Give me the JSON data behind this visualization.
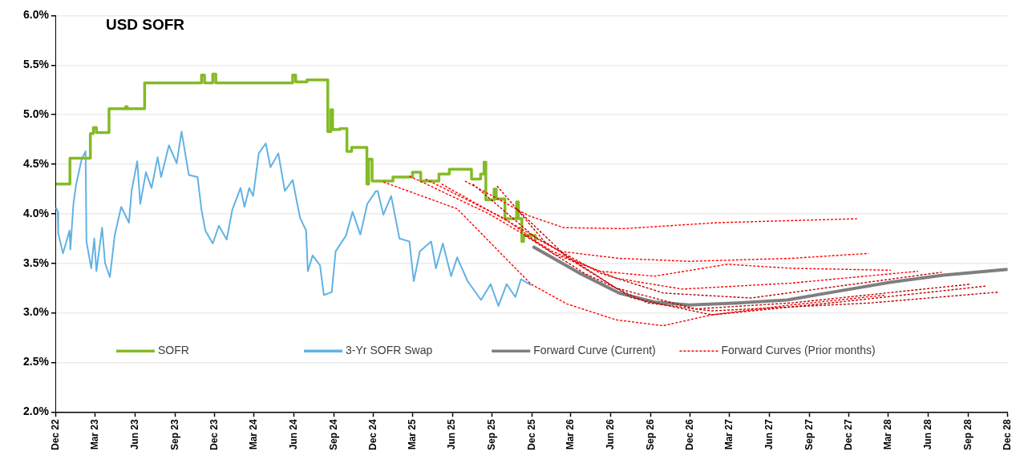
{
  "chart_data": {
    "type": "line",
    "title": "USD SOFR",
    "legend": "bottom",
    "grid": "y",
    "marker": "none",
    "ylim": [
      2,
      6
    ],
    "yticks": [
      {
        "value": 2,
        "label": "2.0%"
      },
      {
        "value": 2.5,
        "label": "2.5%"
      },
      {
        "value": 3,
        "label": "3.0%"
      },
      {
        "value": 3.5,
        "label": "3.5%"
      },
      {
        "value": 4,
        "label": "4.0%"
      },
      {
        "value": 4.5,
        "label": "4.5%"
      },
      {
        "value": 5,
        "label": "5.0%"
      },
      {
        "value": 5.5,
        "label": "5.5%"
      },
      {
        "value": 6,
        "label": "6.0%"
      }
    ],
    "xlim": [
      "2022-12",
      "2028-12"
    ],
    "xticks": [
      {
        "value": "2022-12",
        "label": "Dec 22"
      },
      {
        "value": "2023-03",
        "label": "Mar 23"
      },
      {
        "value": "2023-06",
        "label": "Jun 23"
      },
      {
        "value": "2023-09",
        "label": "Sep 23"
      },
      {
        "value": "2023-12",
        "label": "Dec 23"
      },
      {
        "value": "2024-03",
        "label": "Mar 24"
      },
      {
        "value": "2024-06",
        "label": "Jun 24"
      },
      {
        "value": "2024-09",
        "label": "Sep 24"
      },
      {
        "value": "2024-12",
        "label": "Dec 24"
      },
      {
        "value": "2025-03",
        "label": "Mar 25"
      },
      {
        "value": "2025-06",
        "label": "Jun 25"
      },
      {
        "value": "2025-09",
        "label": "Sep 25"
      },
      {
        "value": "2025-12",
        "label": "Dec 25"
      },
      {
        "value": "2026-03",
        "label": "Mar 26"
      },
      {
        "value": "2026-06",
        "label": "Jun 26"
      },
      {
        "value": "2026-09",
        "label": "Sep 26"
      },
      {
        "value": "2026-12",
        "label": "Dec 26"
      },
      {
        "value": "2027-03",
        "label": "Mar 27"
      },
      {
        "value": "2027-06",
        "label": "Jun 27"
      },
      {
        "value": "2027-09",
        "label": "Sep 27"
      },
      {
        "value": "2027-12",
        "label": "Dec 27"
      },
      {
        "value": "2028-03",
        "label": "Mar 28"
      },
      {
        "value": "2028-06",
        "label": "Jun 28"
      },
      {
        "value": "2028-09",
        "label": "Sep 28"
      },
      {
        "value": "2028-12",
        "label": "Dec 28"
      }
    ],
    "series": [
      {
        "name": "SOFR",
        "type": "step",
        "color": "#84bb26",
        "line_style": "solid",
        "x": [
          "2022-12-01",
          "2023-01-02",
          "2023-02-18",
          "2023-02-25",
          "2023-03-04",
          "2023-04-02",
          "2023-05-10",
          "2023-05-14",
          "2023-06-23",
          "2023-11-01",
          "2023-11-08",
          "2023-11-27",
          "2023-12-04",
          "2024-05-29",
          "2024-06-05",
          "2024-07-01",
          "2024-08-18",
          "2024-08-25",
          "2024-08-29",
          "2024-09-15",
          "2024-10-01",
          "2024-10-12",
          "2024-11-16",
          "2024-11-20",
          "2024-11-28",
          "2025-01-15",
          "2025-03-01",
          "2025-03-20",
          "2025-05-01",
          "2025-05-25",
          "2025-07-15",
          "2025-08-05",
          "2025-08-13",
          "2025-08-17",
          "2025-09-05",
          "2025-09-10",
          "2025-09-30",
          "2025-10-27",
          "2025-10-31",
          "2025-11-08",
          "2025-11-12",
          "2025-12-09"
        ],
        "values": [
          4.3,
          4.56,
          4.81,
          4.87,
          4.82,
          5.06,
          5.08,
          5.06,
          5.32,
          5.4,
          5.32,
          5.41,
          5.32,
          5.4,
          5.33,
          5.35,
          4.83,
          5.05,
          4.85,
          4.86,
          4.63,
          4.67,
          4.3,
          4.55,
          4.33,
          4.37,
          4.42,
          4.33,
          4.4,
          4.45,
          4.35,
          4.4,
          4.52,
          4.14,
          4.25,
          4.15,
          3.95,
          4.12,
          3.95,
          3.72,
          3.78,
          3.72
        ]
      },
      {
        "name": "3-Yr SOFR Swap",
        "type": "line",
        "color": "#62b2e4",
        "line_style": "solid",
        "x": [
          "2022-12-01",
          "2022-12-05",
          "2022-12-06",
          "2022-12-17",
          "2023-01-01",
          "2023-01-03",
          "2023-01-10",
          "2023-01-16",
          "2023-01-29",
          "2023-02-07",
          "2023-02-09",
          "2023-02-20",
          "2023-02-27",
          "2023-03-04",
          "2023-03-17",
          "2023-03-24",
          "2023-04-04",
          "2023-04-15",
          "2023-04-30",
          "2023-05-18",
          "2023-05-24",
          "2023-06-06",
          "2023-06-13",
          "2023-06-26",
          "2023-07-09",
          "2023-07-23",
          "2023-07-31",
          "2023-08-18",
          "2023-09-05",
          "2023-09-16",
          "2023-10-03",
          "2023-10-23",
          "2023-11-01",
          "2023-11-10",
          "2023-11-27",
          "2023-12-11",
          "2023-12-29",
          "2024-01-11",
          "2024-01-30",
          "2024-02-08",
          "2024-02-19",
          "2024-02-28",
          "2024-03-12",
          "2024-03-28",
          "2024-04-08",
          "2024-04-26",
          "2024-05-11",
          "2024-05-29",
          "2024-06-15",
          "2024-06-29",
          "2024-07-03",
          "2024-07-14",
          "2024-07-31",
          "2024-08-09",
          "2024-08-27",
          "2024-09-05",
          "2024-09-29",
          "2024-10-14",
          "2024-11-01",
          "2024-11-17",
          "2024-12-07",
          "2024-12-11",
          "2024-12-24",
          "2025-01-11",
          "2025-01-30",
          "2025-02-22",
          "2025-03-04",
          "2025-03-18",
          "2025-04-13",
          "2025-04-24",
          "2025-05-10",
          "2025-05-29",
          "2025-06-12",
          "2025-07-06",
          "2025-08-06",
          "2025-08-28",
          "2025-09-15",
          "2025-10-04",
          "2025-10-24",
          "2025-11-06",
          "2025-11-29"
        ],
        "values": [
          4.06,
          4.02,
          3.8,
          3.6,
          3.83,
          3.64,
          4.1,
          4.29,
          4.55,
          4.63,
          3.72,
          3.45,
          3.75,
          3.42,
          3.86,
          3.5,
          3.36,
          3.78,
          4.07,
          3.91,
          4.23,
          4.53,
          4.1,
          4.42,
          4.26,
          4.57,
          4.37,
          4.69,
          4.51,
          4.83,
          4.39,
          4.37,
          4.04,
          3.83,
          3.7,
          3.88,
          3.74,
          4.04,
          4.26,
          4.07,
          4.26,
          4.18,
          4.61,
          4.71,
          4.47,
          4.61,
          4.23,
          4.34,
          3.96,
          3.83,
          3.42,
          3.58,
          3.48,
          3.18,
          3.21,
          3.62,
          3.78,
          4.02,
          3.79,
          4.1,
          4.23,
          4.23,
          3.99,
          4.18,
          3.75,
          3.72,
          3.32,
          3.62,
          3.72,
          3.45,
          3.7,
          3.37,
          3.56,
          3.32,
          3.13,
          3.29,
          3.07,
          3.29,
          3.16,
          3.34,
          3.28
        ]
      },
      {
        "name": "Forward Curve (Current)",
        "type": "line",
        "color": "#7f7f7f",
        "line_style": "solid",
        "x": [
          "2025-12-03",
          "2026-03-17",
          "2026-06-20",
          "2026-09-09",
          "2026-11-29",
          "2027-03-20",
          "2027-07-12",
          "2027-11-08",
          "2028-03-07",
          "2028-07-06",
          "2028-12-01"
        ],
        "values": [
          3.67,
          3.41,
          3.2,
          3.11,
          3.08,
          3.1,
          3.13,
          3.22,
          3.31,
          3.38,
          3.44
        ]
      },
      {
        "name": "Forward Curves (Prior months)",
        "type": "line",
        "color": "#ff0000",
        "line_style": "dashed",
        "x": [
          "2024-12-24",
          "2025-06-12",
          "2025-11-29",
          "2026-02-20",
          "2026-06-13",
          "2026-09-29",
          "2027-01-19",
          "2027-07-21",
          "2028-02-25"
        ],
        "values": [
          4.32,
          4.05,
          3.29,
          3.09,
          2.93,
          2.87,
          2.98,
          3.08,
          3.18
        ]
      },
      {
        "type": "line",
        "color": "#ff0000",
        "line_style": "dashed",
        "x": [
          "2025-06-30",
          "2025-11-24",
          "2026-02-12",
          "2026-06-30",
          "2027-02-01",
          "2027-12-23"
        ],
        "values": [
          4.33,
          3.98,
          3.86,
          3.85,
          3.91,
          3.95
        ]
      },
      {
        "type": "line",
        "color": "#ff0000",
        "line_style": "dashed",
        "x": [
          "2025-05-07",
          "2025-11-06",
          "2026-02-05",
          "2026-06-20",
          "2026-11-29",
          "2027-07-21",
          "2028-01-16"
        ],
        "values": [
          4.3,
          3.85,
          3.62,
          3.55,
          3.52,
          3.55,
          3.6
        ]
      },
      {
        "type": "line",
        "color": "#ff0000",
        "line_style": "dashed",
        "x": [
          "2025-03-31",
          "2025-09-30",
          "2026-01-18",
          "2026-05-08",
          "2026-09-09",
          "2027-02-24",
          "2027-07-21",
          "2028-03-07"
        ],
        "values": [
          4.35,
          3.95,
          3.6,
          3.42,
          3.37,
          3.49,
          3.45,
          3.43
        ]
      },
      {
        "type": "line",
        "color": "#ff0000",
        "line_style": "dashed",
        "x": [
          "2025-02-22",
          "2025-08-24",
          "2026-01-18",
          "2026-06-13",
          "2026-11-12",
          "2027-07-21",
          "2028-05-09"
        ],
        "values": [
          4.38,
          4.0,
          3.62,
          3.35,
          3.24,
          3.3,
          3.42
        ]
      },
      {
        "type": "line",
        "color": "#c00000",
        "line_style": "dashed",
        "x": [
          "2025-07-18",
          "2025-12-12",
          "2026-05-08",
          "2026-09-30",
          "2027-04-20",
          "2028-07-02"
        ],
        "values": [
          4.3,
          3.75,
          3.4,
          3.2,
          3.15,
          3.41
        ]
      },
      {
        "type": "line",
        "color": "#c00000",
        "line_style": "dashed",
        "x": [
          "2025-09-12",
          "2025-12-30",
          "2026-06-13",
          "2026-12-13",
          "2027-07-21",
          "2028-09-08"
        ],
        "values": [
          4.28,
          3.72,
          3.25,
          3.04,
          3.1,
          3.29
        ]
      },
      {
        "type": "line",
        "color": "#c00000",
        "line_style": "dashed",
        "x": [
          "2025-10-27",
          "2026-02-23",
          "2026-07-20",
          "2027-01-19",
          "2027-10-20",
          "2028-10-11"
        ],
        "values": [
          4.05,
          3.55,
          3.15,
          2.98,
          3.1,
          3.27
        ]
      },
      {
        "type": "line",
        "color": "#c00000",
        "line_style": "dashed",
        "x": [
          "2025-11-15",
          "2026-04-01",
          "2026-08-25",
          "2027-01-19",
          "2028-01-20",
          "2028-11-11"
        ],
        "values": [
          3.78,
          3.4,
          3.1,
          3.02,
          3.1,
          3.21
        ]
      }
    ]
  }
}
